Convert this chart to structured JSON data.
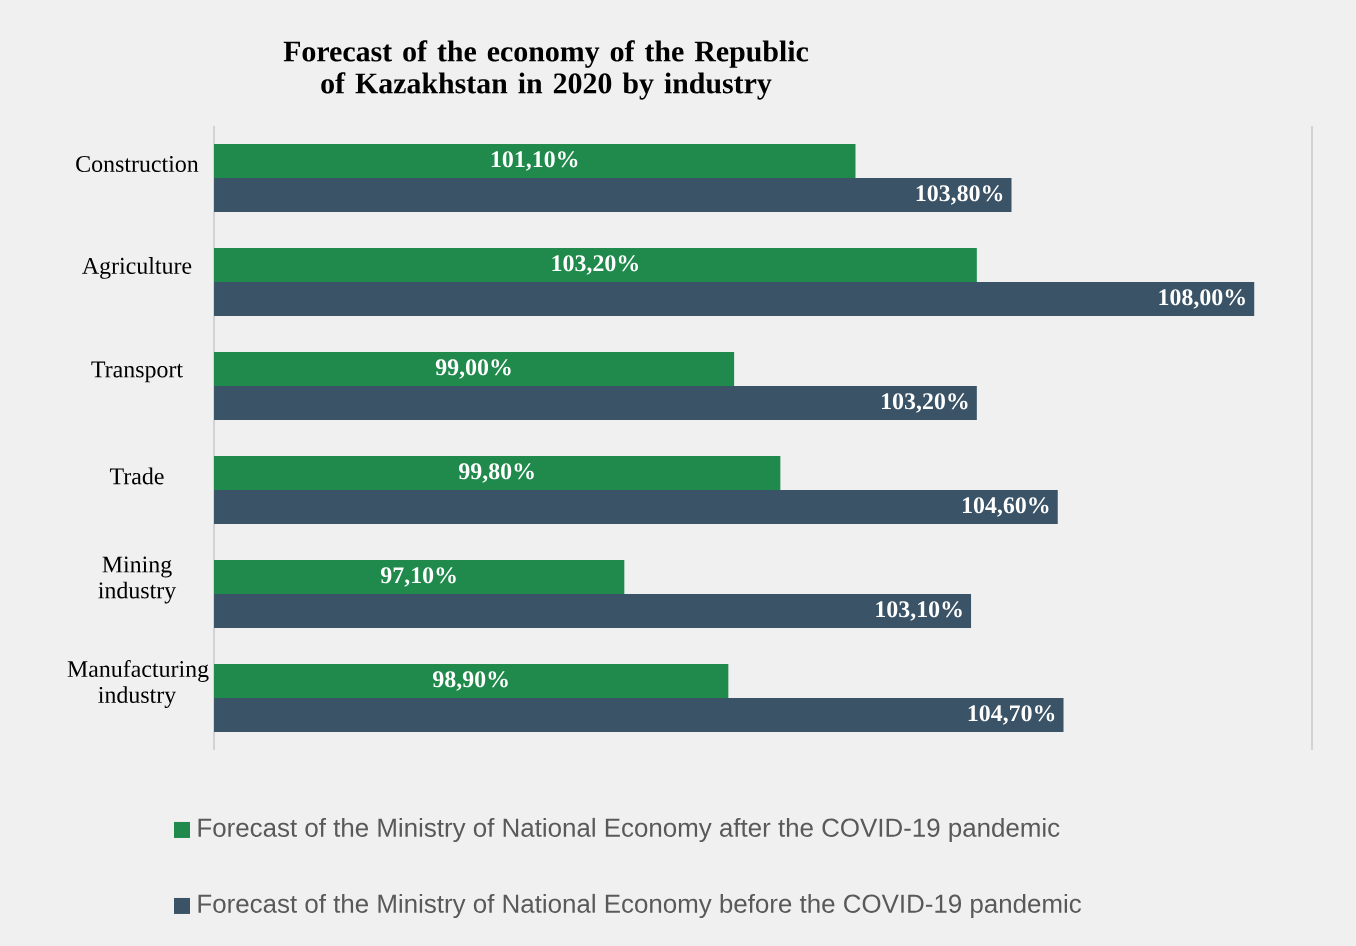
{
  "chart_data": {
    "type": "bar",
    "orientation": "horizontal",
    "title": "Forecast of the economy of the Republic of Kazakhstan in 2020 by industry",
    "categories": [
      "Construction",
      "Agriculture",
      "Transport",
      "Trade",
      "Mining industry",
      "Manufacturing industry"
    ],
    "series": [
      {
        "name": "Forecast of the Ministry of National Economy after the COVID-19 pandemic",
        "color": "#1f8a4c",
        "values": [
          101.1,
          103.2,
          99.0,
          99.8,
          97.1,
          98.9
        ],
        "value_labels": [
          "101,10%",
          "103,20%",
          "99,00%",
          "99,80%",
          "97,10%",
          "98,90%"
        ]
      },
      {
        "name": "Forecast of the Ministry of National Economy before the COVID-19 pandemic",
        "color": "#3a5366",
        "values": [
          103.8,
          108.0,
          103.2,
          104.6,
          103.1,
          104.7
        ],
        "value_labels": [
          "103,80%",
          "108,00%",
          "103,20%",
          "104,60%",
          "103,10%",
          "104,70%"
        ]
      }
    ],
    "xlim": [
      90,
      109
    ],
    "tick_labels": "y",
    "legend": "bottom"
  }
}
